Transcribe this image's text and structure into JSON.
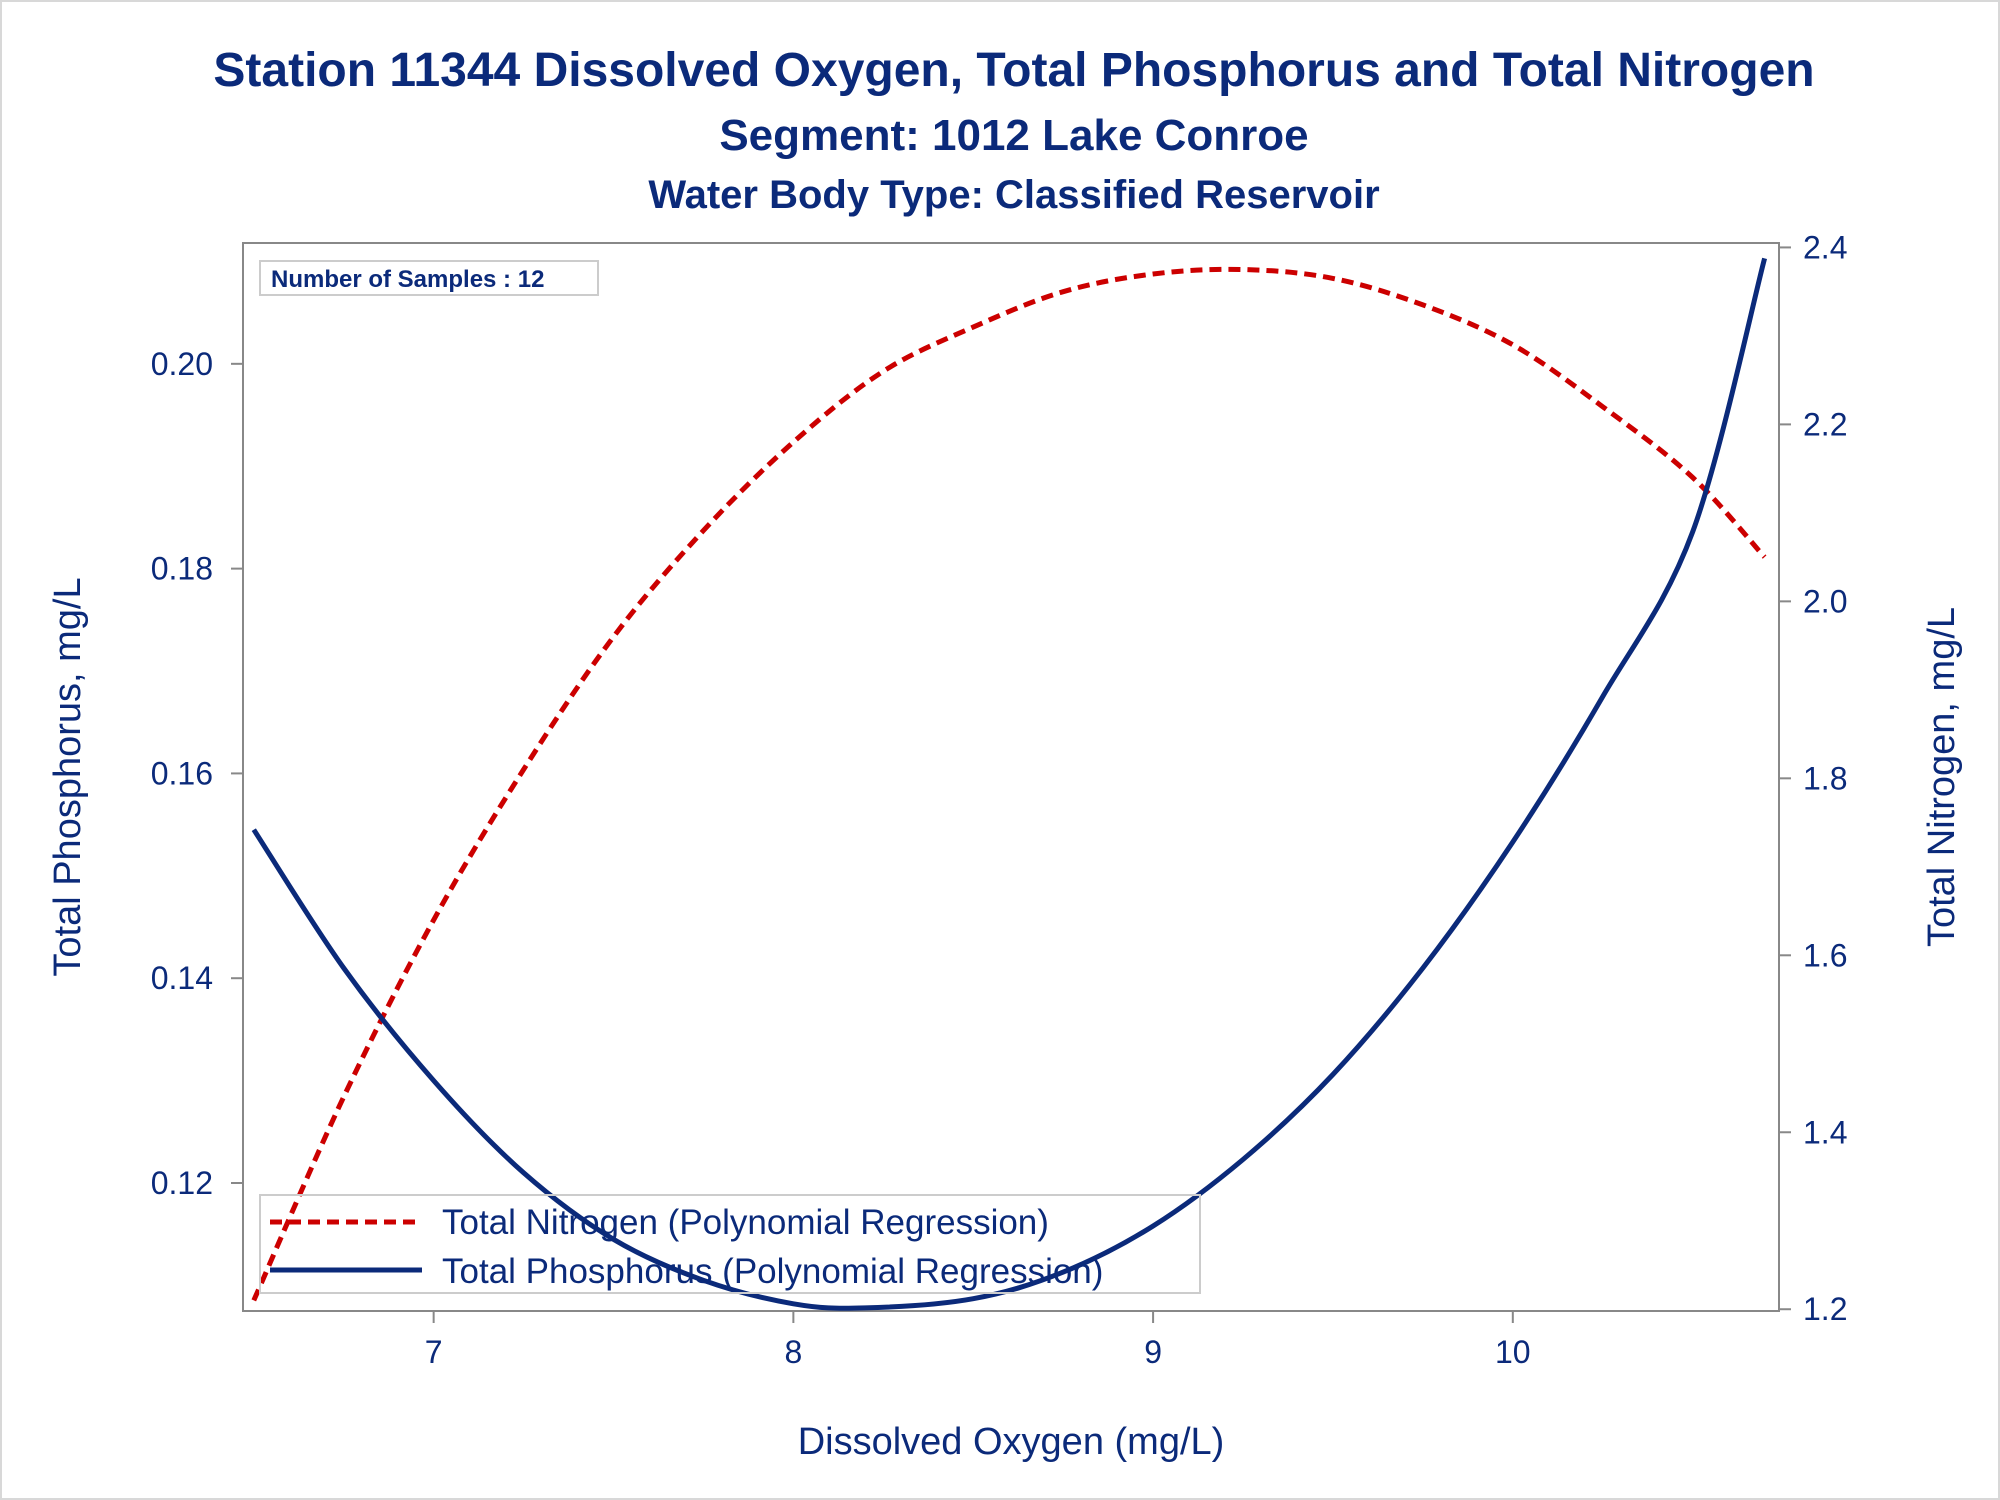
{
  "titles": {
    "title": "Station 11344  Dissolved Oxygen, Total Phosphorus and Total Nitrogen",
    "subtitle1": "Segment: 1012  Lake Conroe",
    "subtitle2": "Water Body Type: Classified Reservoir"
  },
  "inset": {
    "label": "Number of Samples : 12"
  },
  "colors": {
    "text": "#0b2a7a",
    "nitrogen": "#cc0000",
    "phosphorus": "#0b2a7a",
    "frame": "#888888"
  },
  "chart_data": {
    "type": "line",
    "xlabel": "Dissolved Oxygen (mg/L)",
    "ylabel_left": "Total Phosphorus, mg/L",
    "ylabel_right": "Total Nitrogen, mg/L",
    "xlim": [
      6.47,
      10.74
    ],
    "ylim_left": [
      0.1075,
      0.2118
    ],
    "ylim_right": [
      1.198,
      2.405
    ],
    "x_ticks": [
      7,
      8,
      9,
      10
    ],
    "x_tick_labels": [
      "7",
      "8",
      "9",
      "10"
    ],
    "y_left_ticks": [
      0.12,
      0.14,
      0.16,
      0.18,
      0.2
    ],
    "y_left_tick_labels": [
      "0.12",
      "0.14",
      "0.16",
      "0.18",
      "0.20"
    ],
    "y_right_ticks": [
      1.2,
      1.4,
      1.6,
      1.8,
      2.0,
      2.2,
      2.4
    ],
    "y_right_tick_labels": [
      "1.2",
      "1.4",
      "1.6",
      "1.8",
      "2.0",
      "2.2",
      "2.4"
    ],
    "grid": false,
    "legend_position": "bottom-left inside",
    "series": [
      {
        "name": "Total Nitrogen (Polynomial Regression)",
        "axis": "right",
        "style": "dashed",
        "color": "#cc0000",
        "x": [
          6.5,
          6.75,
          7.0,
          7.25,
          7.5,
          7.75,
          8.0,
          8.25,
          8.5,
          8.75,
          9.0,
          9.25,
          9.5,
          9.75,
          10.0,
          10.25,
          10.5,
          10.7
        ],
        "y": [
          1.21,
          1.44,
          1.64,
          1.81,
          1.96,
          2.08,
          2.18,
          2.26,
          2.31,
          2.35,
          2.37,
          2.375,
          2.365,
          2.335,
          2.29,
          2.22,
          2.14,
          2.05
        ]
      },
      {
        "name": "Total Phosphorus (Polynomial Regression)",
        "axis": "left",
        "style": "solid",
        "color": "#0b2a7a",
        "x": [
          6.5,
          6.75,
          7.0,
          7.25,
          7.5,
          7.75,
          8.0,
          8.2,
          8.5,
          8.75,
          9.0,
          9.25,
          9.5,
          9.75,
          10.0,
          10.25,
          10.5,
          10.7
        ],
        "y": [
          0.1545,
          0.141,
          0.13,
          0.121,
          0.1145,
          0.1105,
          0.1082,
          0.1078,
          0.1087,
          0.1113,
          0.1158,
          0.1223,
          0.1306,
          0.141,
          0.1533,
          0.1675,
          0.1836,
          0.2103
        ]
      }
    ]
  }
}
